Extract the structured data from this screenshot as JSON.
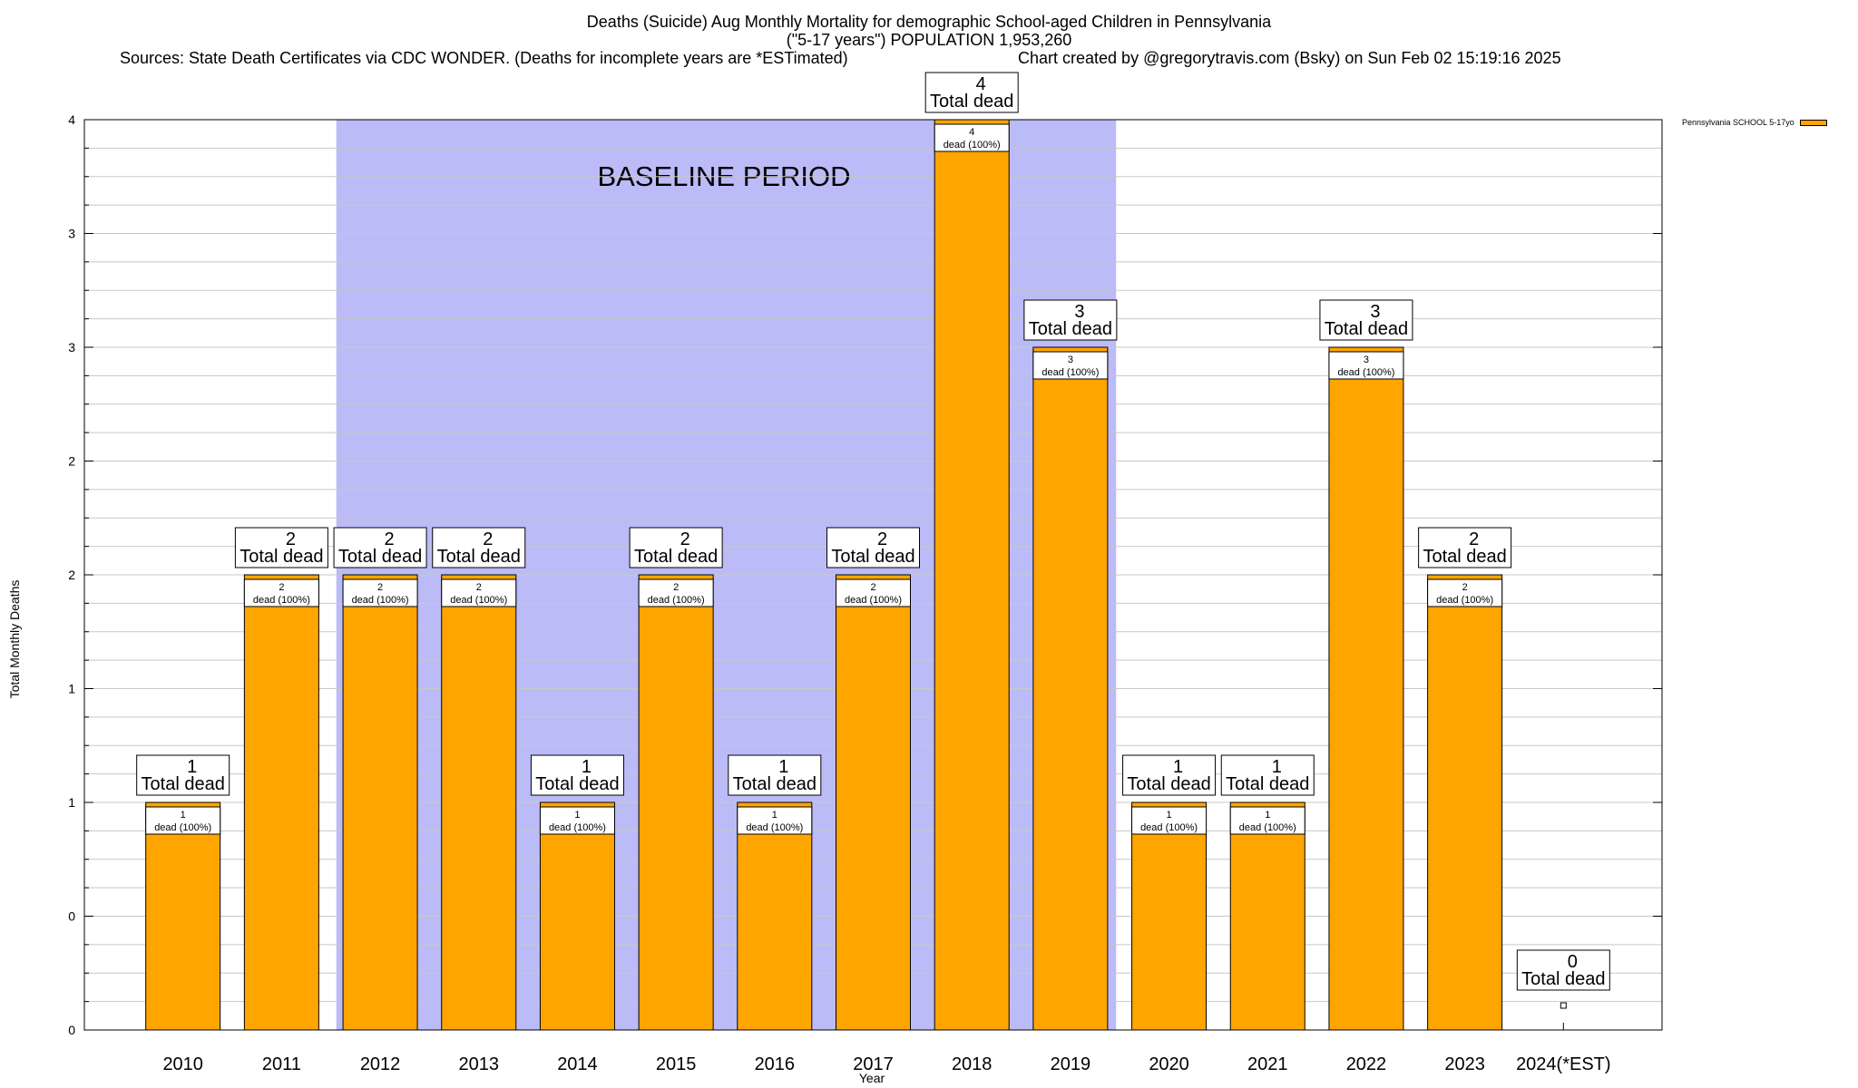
{
  "chart_data": {
    "type": "bar",
    "title": "Deaths (Suicide) Aug Monthly Mortality for demographic School-aged Children in Pennsylvania",
    "subtitle": "(\"5-17 years\") POPULATION 1,953,260",
    "sources": "Sources: State Death Certificates via CDC WONDER. (Deaths for incomplete years are *ESTimated)",
    "credit": "Chart created by @gregorytravis.com (Bsky) on Sun Feb 02 15:19:16 2025",
    "xlabel": "Year",
    "ylabel": "Total Monthly Deaths",
    "categories": [
      "2010",
      "2011",
      "2012",
      "2013",
      "2014",
      "2015",
      "2016",
      "2017",
      "2018",
      "2019",
      "2020",
      "2021",
      "2022",
      "2023",
      "2024(*EST)"
    ],
    "series": [
      {
        "name": "Pennsylvania SCHOOL 5-17yo",
        "color": "#FFA500",
        "values": [
          1,
          2,
          2,
          2,
          1,
          2,
          1,
          2,
          4,
          3,
          1,
          1,
          3,
          2,
          0
        ]
      }
    ],
    "ylim": [
      0,
      4
    ],
    "ytick_values": [
      0,
      0.5,
      1,
      1.5,
      2,
      2.5,
      3,
      3.5,
      4
    ],
    "ytick_labels": [
      "0",
      "0",
      "1",
      "1",
      "2",
      "2",
      "3",
      "3",
      "4"
    ],
    "total_label_suffix": "Total dead",
    "inner_label_suffix": "dead (100%)",
    "baseline": {
      "label": "BASELINE PERIOD",
      "from": "2012",
      "to": "2019",
      "color": "#BBBBF7"
    },
    "grid": true,
    "legend_position": "top-right"
  }
}
